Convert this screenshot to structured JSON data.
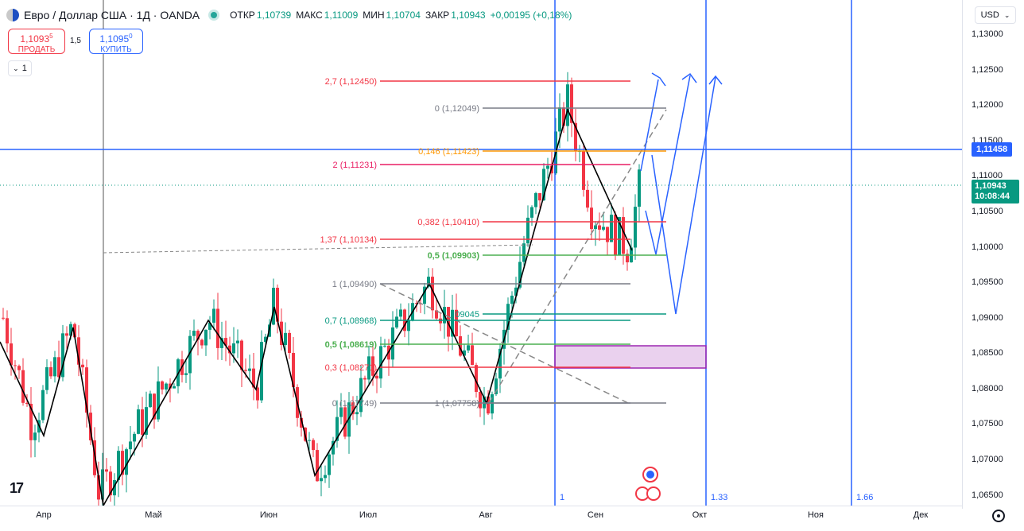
{
  "header": {
    "symbol": "Евро / Доллар США · 1Д · OANDA",
    "open_label": "ОТКР",
    "open_value": "1,10739",
    "high_label": "МАКС",
    "high_value": "1,11009",
    "low_label": "МИН",
    "low_value": "1,10704",
    "close_label": "ЗАКР",
    "close_value": "1,10943",
    "change_value": "+0,00195 (+0,18%)"
  },
  "trade": {
    "sell_price": "1,1093",
    "sell_price_sup": "5",
    "sell_label": "ПРОДАТЬ",
    "spread": "1,5",
    "buy_price": "1,1095",
    "buy_price_sup": "0",
    "buy_label": "КУПИТЬ"
  },
  "interval_chip": "1",
  "currency_button": "USD",
  "price_axis": {
    "ticks": [
      "1,13000",
      "1,12500",
      "1,12000",
      "1,11500",
      "1,11000",
      "1,10500",
      "1,10000",
      "1,09500",
      "1,09000",
      "1,08500",
      "1,08000",
      "1,07500",
      "1,07000",
      "1,06500"
    ],
    "horizontal_line_label": "1,11458",
    "current_price": "1,10943",
    "countdown": "10:08:44"
  },
  "time_axis": {
    "ticks": [
      "Апр",
      "Май",
      "Июн",
      "Июл",
      "Авг",
      "Сен",
      "Окт",
      "Ноя",
      "Дек"
    ]
  },
  "chart_data": {
    "type": "candlestick",
    "symbol": "EURUSD",
    "timeframe": "1D",
    "ylim": [
      1.0635,
      1.1335
    ],
    "fib_levels": [
      {
        "label": "2,7 (1,12450)",
        "value": 1.1245,
        "color": "#f23645"
      },
      {
        "label": "0 (1,12049)",
        "value": 1.12049,
        "color": "#787b86"
      },
      {
        "label": "0,146 (1,11423)",
        "value": 1.11423,
        "color": "#ff9800"
      },
      {
        "label": "2 (1,11231)",
        "value": 1.11231,
        "color": "#e91e63"
      },
      {
        "label": "0,382 (1,10410)",
        "value": 1.1041,
        "color": "#f23645"
      },
      {
        "label": "1,37 (1,10134)",
        "value": 1.10134,
        "color": "#f23645"
      },
      {
        "label": "0,5 (1,09903)",
        "value": 1.09903,
        "color": "#4caf50"
      },
      {
        "label": "1 (1,09490)",
        "value": 1.0949,
        "color": "#787b86"
      },
      {
        "label": "0,7 (1,08968)",
        "value": 1.08968,
        "color": "#089981"
      },
      {
        "label": "0,5 (1,08619)",
        "value": 1.08619,
        "color": "#4caf50"
      },
      {
        "label": "0,3 (1,08271)",
        "value": 1.08271,
        "color": "#f23645"
      },
      {
        "label": "0 (1,07749)",
        "value": 1.07749,
        "color": "#787b86"
      },
      {
        "label": "1 (1,07758)",
        "value": 1.07758,
        "color": "#787b86"
      },
      {
        "label": "09045",
        "value": 1.09045,
        "color": "#089981"
      }
    ],
    "vertical_labels": [
      "1",
      "1.33",
      "1.66"
    ],
    "colors": {
      "up": "#089981",
      "down": "#f23645",
      "drawing": "#2962ff"
    }
  }
}
